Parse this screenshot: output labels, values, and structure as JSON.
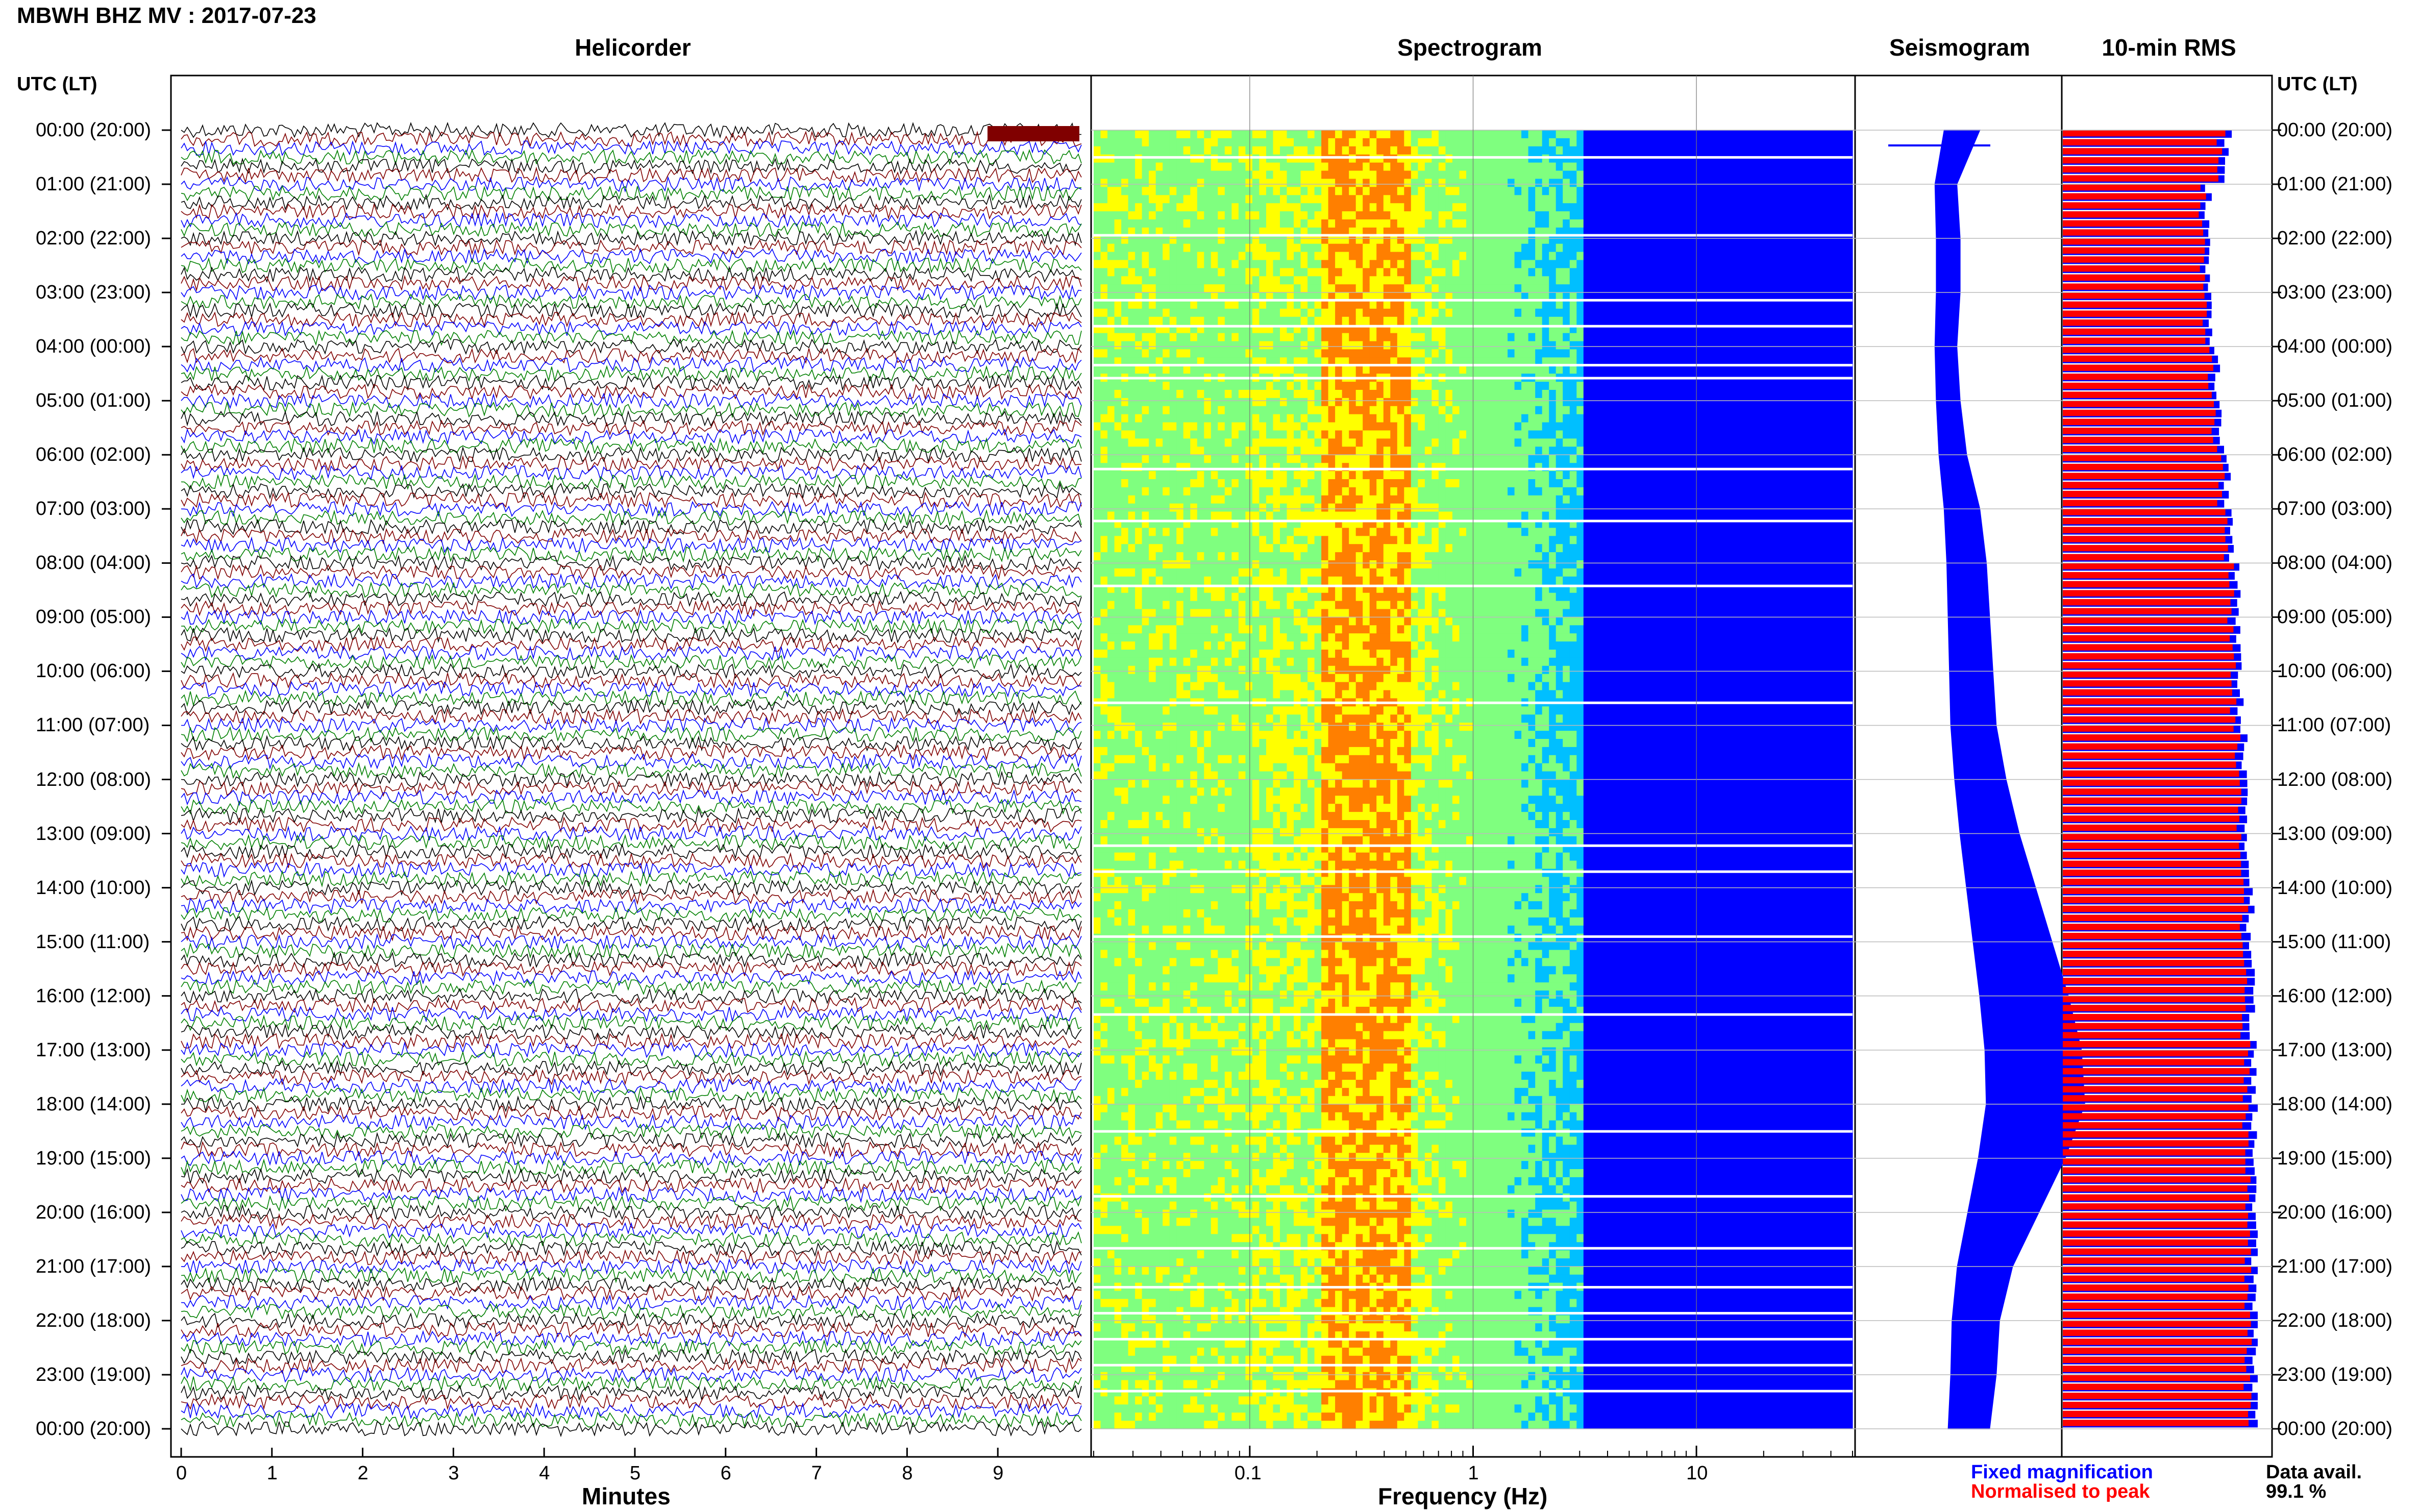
{
  "header": {
    "title": "MBWH BHZ MV : 2017-07-23"
  },
  "panels": {
    "helicorder": "Helicorder",
    "spectrogram": "Spectrogram",
    "seismogram": "Seismogram",
    "rms": "10-min RMS"
  },
  "time_axis": {
    "header_left": "UTC (LT)",
    "header_right": "UTC (LT)",
    "labels": [
      "00:00 (20:00)",
      "01:00 (21:00)",
      "02:00 (22:00)",
      "03:00 (23:00)",
      "04:00 (00:00)",
      "05:00 (01:00)",
      "06:00 (02:00)",
      "07:00 (03:00)",
      "08:00 (04:00)",
      "09:00 (05:00)",
      "10:00 (06:00)",
      "11:00 (07:00)",
      "12:00 (08:00)",
      "13:00 (09:00)",
      "14:00 (10:00)",
      "15:00 (11:00)",
      "16:00 (12:00)",
      "17:00 (13:00)",
      "18:00 (14:00)",
      "19:00 (15:00)",
      "20:00 (16:00)",
      "21:00 (17:00)",
      "22:00 (18:00)",
      "23:00 (19:00)",
      "00:00 (20:00)"
    ]
  },
  "chart_data": [
    {
      "type": "line",
      "panel": "helicorder",
      "xlabel": "Minutes",
      "x_ticks": [
        "0",
        "1",
        "2",
        "3",
        "4",
        "5",
        "6",
        "7",
        "8",
        "9"
      ],
      "xlim": [
        0,
        10
      ],
      "trace_colors": [
        "#000000",
        "#800000",
        "#0000ff",
        "#008000"
      ],
      "rows_per_hour": 6
    },
    {
      "type": "heatmap",
      "panel": "spectrogram",
      "xlabel": "Frequency (Hz)",
      "x_scale": "log",
      "x_ticks": [
        "0.1",
        "1",
        "10"
      ],
      "xlim": [
        0.02,
        50
      ],
      "peak_band_hz": [
        0.2,
        0.5
      ],
      "colormap": [
        "#0000ff",
        "#00bfff",
        "#7fff7f",
        "#ffff00",
        "#ff7f00"
      ]
    },
    {
      "type": "line",
      "panel": "seismogram",
      "color": "#0000ff",
      "envelope": [
        0.9,
        0.55,
        0.6,
        0.6,
        0.55,
        0.6,
        0.7,
        0.9,
        1.0,
        1.05,
        1.1,
        1.15,
        1.3,
        1.5,
        1.75,
        2.0,
        2.25,
        2.45,
        2.5,
        2.2,
        1.8,
        1.4,
        1.2,
        1.15,
        1.05
      ]
    },
    {
      "type": "bar",
      "panel": "rms",
      "series": [
        {
          "name": "Fixed magnification",
          "color": "#0000ff"
        },
        {
          "name": "Normalised to peak",
          "color": "#ff0000"
        }
      ],
      "values": [
        0.85,
        0.75,
        0.75,
        0.77,
        0.8,
        0.82,
        0.85,
        0.87,
        0.9,
        0.9,
        0.92,
        0.93,
        0.95,
        0.96,
        0.97,
        0.97,
        0.98,
        0.98,
        0.99,
        0.99,
        0.99,
        1.0,
        1.0,
        1.0,
        1.0
      ]
    }
  ],
  "legend": {
    "fixed": "Fixed magnification",
    "normalised": "Normalised to peak",
    "fixed_color": "#0000ff",
    "normalised_color": "#ff0000"
  },
  "availability": {
    "label": "Data avail.",
    "value": "99.1 %"
  }
}
